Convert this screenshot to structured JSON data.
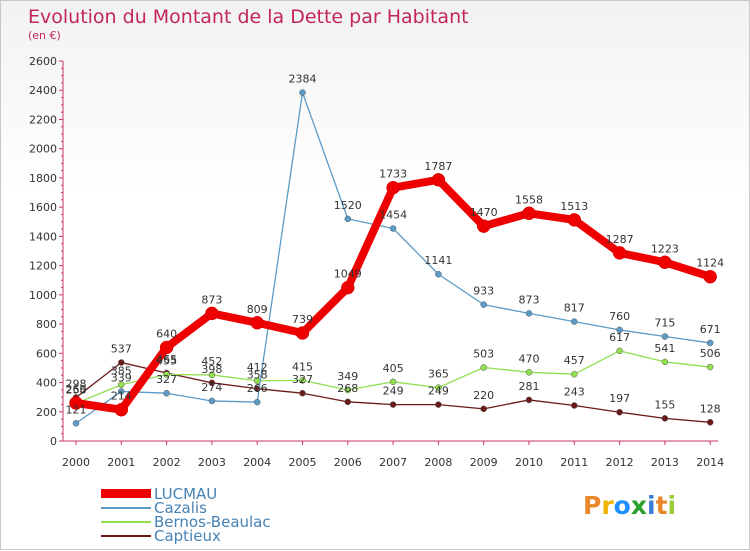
{
  "title": "Evolution du Montant de la Dette par Habitant",
  "unit": "(en €)",
  "logo_text": "Proxiti",
  "logo_colors": [
    "#e8862a",
    "#f0b400",
    "#1e90ff",
    "#2ca02c",
    "#3a7fd5",
    "#e8862a",
    "#9acd32"
  ],
  "chart_data": {
    "type": "line",
    "x": [
      "2000",
      "2001",
      "2002",
      "2003",
      "2004",
      "2005",
      "2006",
      "2007",
      "2008",
      "2009",
      "2010",
      "2011",
      "2012",
      "2013",
      "2014"
    ],
    "y_ticks": [
      0,
      200,
      400,
      600,
      800,
      1000,
      1200,
      1400,
      1600,
      1800,
      2000,
      2200,
      2400,
      2600
    ],
    "ylim": [
      0,
      2600
    ],
    "grid": false,
    "legend_position": "bottom-left",
    "series": [
      {
        "name": "Captieux",
        "color": "#6b1a1a",
        "width": 1.3,
        "values": [
          298,
          537,
          465,
          398,
          358,
          327,
          268,
          249,
          249,
          220,
          281,
          243,
          197,
          155,
          128
        ],
        "labels": [
          "298",
          "537",
          "465",
          "398",
          "358",
          "327",
          "268",
          "249",
          "249",
          "220",
          "281",
          "243",
          "197",
          "155",
          "128"
        ]
      },
      {
        "name": "Bernos-Beaulac",
        "color": "#90e050",
        "width": 1.3,
        "values": [
          258,
          385,
          455,
          452,
          412,
          415,
          349,
          405,
          365,
          503,
          470,
          457,
          617,
          541,
          506
        ],
        "labels": [
          "258",
          "385",
          "455",
          "452",
          "412",
          "415",
          "349",
          "405",
          "365",
          "503",
          "470",
          "457",
          "617",
          "541",
          "506"
        ]
      },
      {
        "name": "Cazalis",
        "color": "#5b9bc8",
        "width": 1.3,
        "values": [
          121,
          339,
          327,
          274,
          266,
          2384,
          1520,
          1454,
          1141,
          933,
          873,
          817,
          760,
          715,
          671
        ],
        "labels": [
          "121",
          "339",
          "327",
          "274",
          "266",
          "2384",
          "1520",
          "1454",
          "1141",
          "933",
          "873",
          "817",
          "760",
          "715",
          "671"
        ]
      },
      {
        "name": "LUCMAU",
        "color": "#ee0000",
        "width": 8,
        "values": [
          260,
          214,
          640,
          873,
          809,
          739,
          1049,
          1733,
          1787,
          1470,
          1558,
          1513,
          1287,
          1223,
          1124
        ],
        "labels": [
          "260",
          "214",
          "640",
          "873",
          "809",
          "739",
          "1049",
          "1733",
          "1787",
          "1470",
          "1558",
          "1513",
          "1287",
          "1223",
          "1124"
        ]
      }
    ]
  },
  "legend": [
    {
      "name": "LUCMAU",
      "color": "#ee0000"
    },
    {
      "name": "Cazalis",
      "color": "#5b9bc8"
    },
    {
      "name": "Bernos-Beaulac",
      "color": "#90e050"
    },
    {
      "name": "Captieux",
      "color": "#6b1a1a"
    }
  ]
}
